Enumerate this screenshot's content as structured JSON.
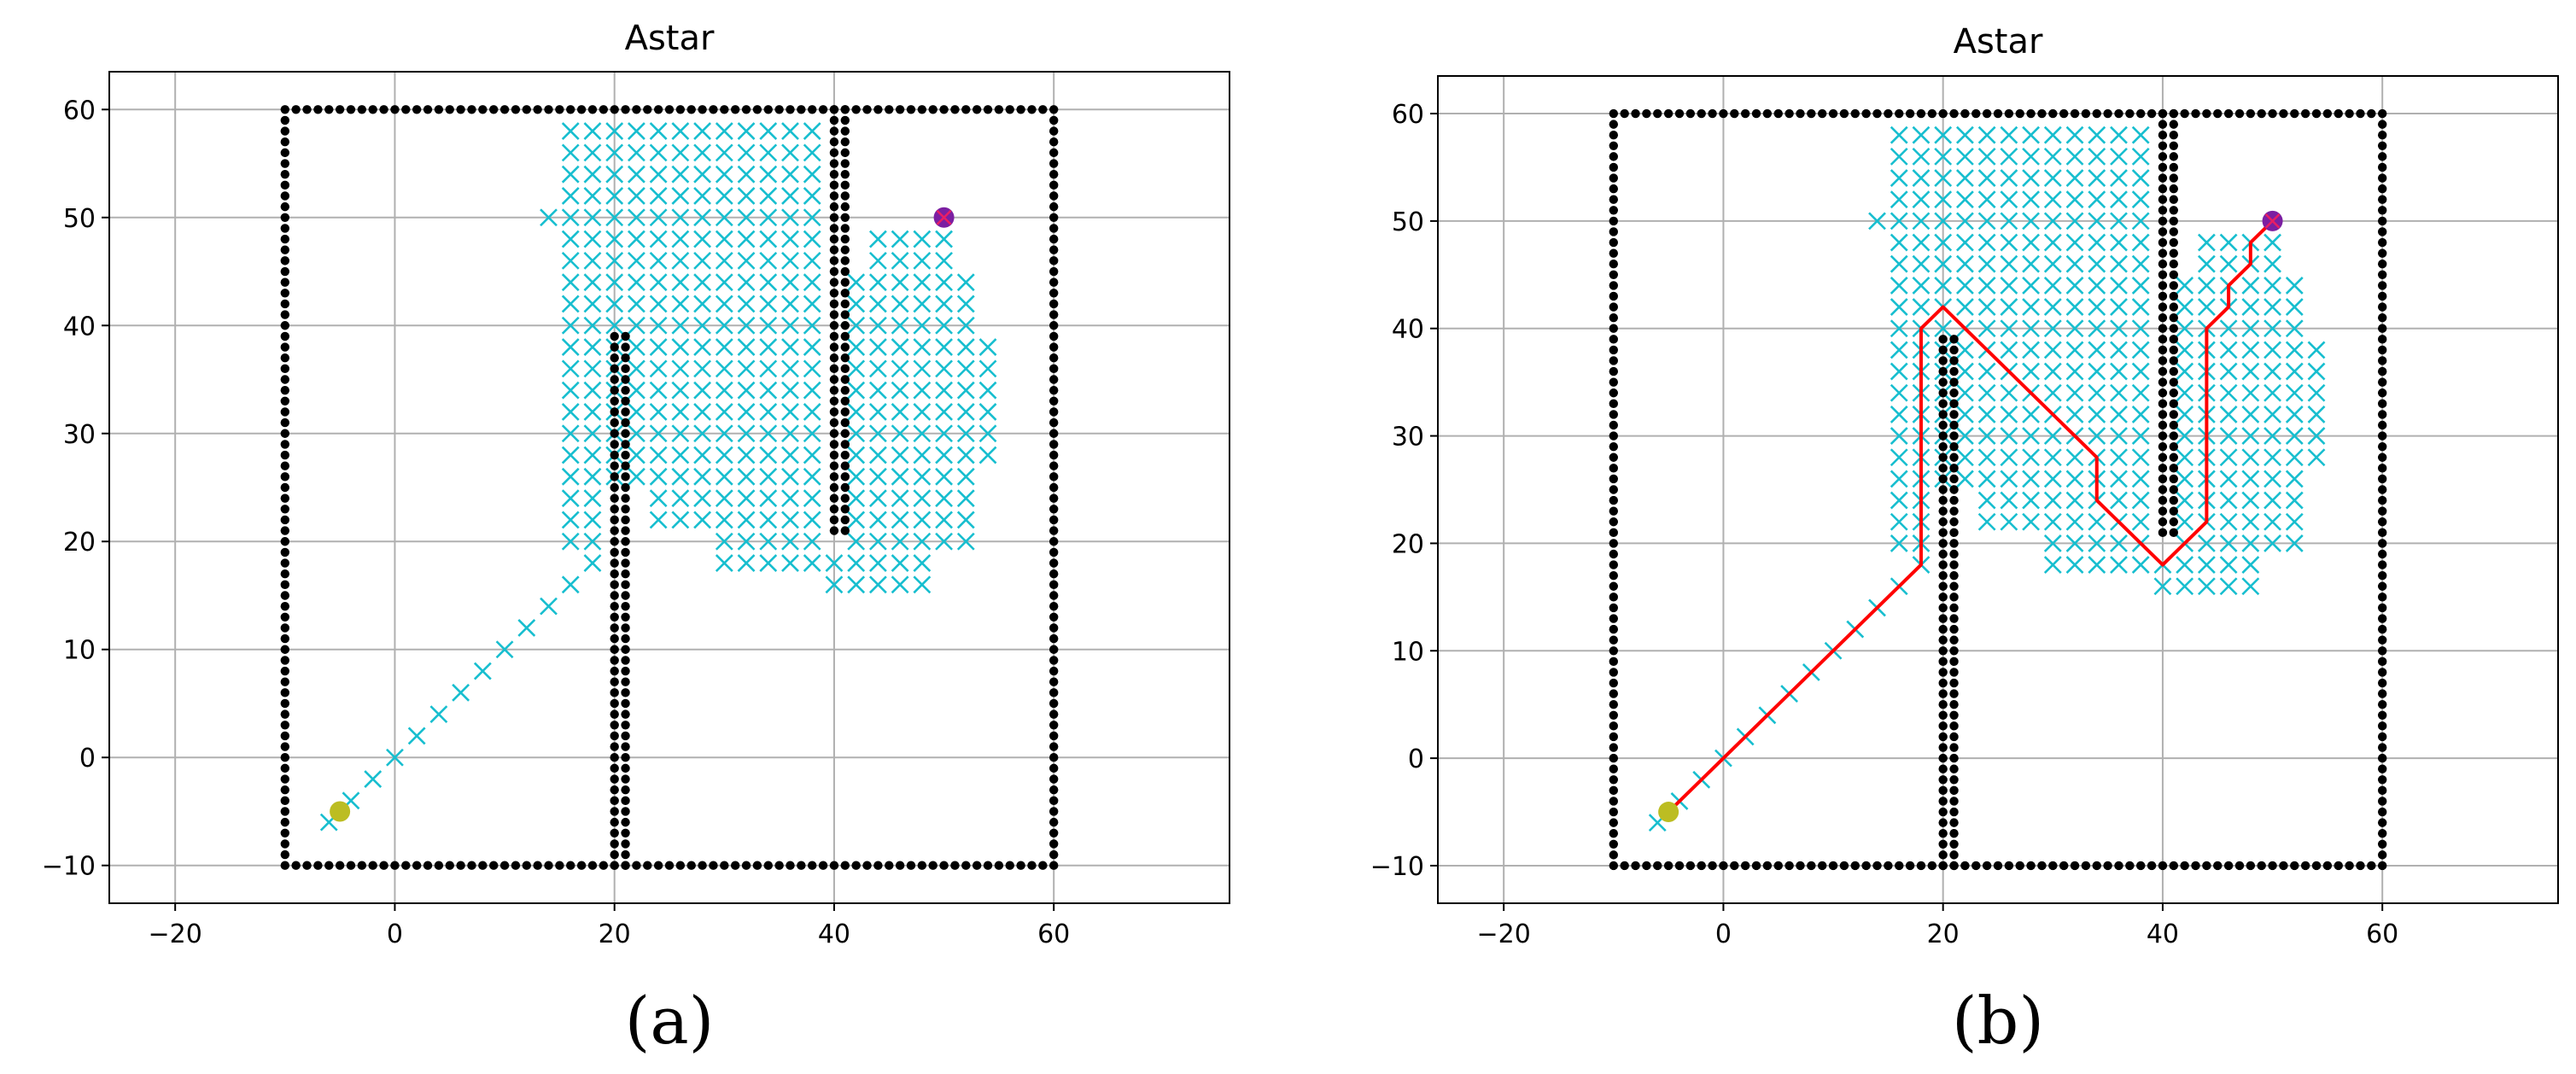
{
  "chart_data": [
    {
      "type": "scatter",
      "panel_label": "(a)",
      "title": "Astar",
      "xlabel": "",
      "ylabel": "",
      "xlim": [
        -26,
        76
      ],
      "ylim": [
        -13.5,
        63.5
      ],
      "xticks": [
        -20,
        0,
        20,
        40,
        60
      ],
      "yticks": [
        -10,
        0,
        10,
        20,
        30,
        40,
        50,
        60
      ],
      "grid": true,
      "legend": "none",
      "start": [
        -5,
        -5
      ],
      "goal": [
        50,
        50
      ],
      "obstacles": {
        "boundary": {
          "xmin": -10,
          "xmax": 60,
          "ymin": -10,
          "ymax": 60
        },
        "walls": [
          {
            "x": [
              20,
              21
            ],
            "y": [
              -10,
              39
            ]
          },
          {
            "x": [
              40,
              41
            ],
            "y": [
              21,
              60
            ]
          }
        ]
      },
      "explored_diagonal": [
        [
          -6,
          -6
        ],
        [
          -4,
          -4
        ],
        [
          -2,
          -2
        ],
        [
          0,
          0
        ],
        [
          2,
          2
        ],
        [
          4,
          4
        ],
        [
          6,
          6
        ],
        [
          8,
          8
        ],
        [
          10,
          10
        ],
        [
          12,
          12
        ],
        [
          14,
          14
        ],
        [
          16,
          16
        ],
        [
          18,
          18
        ]
      ],
      "explored_regions": [
        {
          "x": [
            16,
            38
          ],
          "y": [
            40,
            58
          ]
        },
        {
          "x": [
            18,
            38
          ],
          "y": [
            26,
            38
          ]
        },
        {
          "x": [
            16,
            18
          ],
          "y": [
            20,
            38
          ]
        },
        {
          "x": [
            24,
            38
          ],
          "y": [
            22,
            24
          ]
        },
        {
          "x": [
            30,
            38
          ],
          "y": [
            18,
            20
          ]
        },
        {
          "x": [
            42,
            52
          ],
          "y": [
            20,
            44
          ]
        },
        {
          "x": [
            52,
            54
          ],
          "y": [
            28,
            38
          ]
        },
        {
          "x": [
            44,
            50
          ],
          "y": [
            46,
            48
          ]
        },
        {
          "x": [
            40,
            48
          ],
          "y": [
            16,
            18
          ]
        }
      ],
      "path": null,
      "colors": {
        "obstacle": "#000000",
        "explored": "#17becf",
        "path": "#ff0000",
        "start": "#bcbd22",
        "goal": "#7b1fa2"
      }
    },
    {
      "type": "scatter",
      "panel_label": "(b)",
      "title": "Astar",
      "xlabel": "",
      "ylabel": "",
      "xlim": [
        -26,
        76
      ],
      "ylim": [
        -13.5,
        63.5
      ],
      "xticks": [
        -20,
        0,
        20,
        40,
        60
      ],
      "yticks": [
        -10,
        0,
        10,
        20,
        30,
        40,
        50,
        60
      ],
      "grid": true,
      "legend": "none",
      "start": [
        -5,
        -5
      ],
      "goal": [
        50,
        50
      ],
      "obstacles": {
        "boundary": {
          "xmin": -10,
          "xmax": 60,
          "ymin": -10,
          "ymax": 60
        },
        "walls": [
          {
            "x": [
              20,
              21
            ],
            "y": [
              -10,
              39
            ]
          },
          {
            "x": [
              40,
              41
            ],
            "y": [
              21,
              60
            ]
          }
        ]
      },
      "explored_diagonal": [
        [
          -6,
          -6
        ],
        [
          -4,
          -4
        ],
        [
          -2,
          -2
        ],
        [
          0,
          0
        ],
        [
          2,
          2
        ],
        [
          4,
          4
        ],
        [
          6,
          6
        ],
        [
          8,
          8
        ],
        [
          10,
          10
        ],
        [
          12,
          12
        ],
        [
          14,
          14
        ],
        [
          16,
          16
        ],
        [
          18,
          18
        ]
      ],
      "explored_regions": [
        {
          "x": [
            16,
            38
          ],
          "y": [
            40,
            58
          ]
        },
        {
          "x": [
            18,
            38
          ],
          "y": [
            26,
            38
          ]
        },
        {
          "x": [
            16,
            18
          ],
          "y": [
            20,
            38
          ]
        },
        {
          "x": [
            24,
            38
          ],
          "y": [
            22,
            24
          ]
        },
        {
          "x": [
            30,
            38
          ],
          "y": [
            18,
            20
          ]
        },
        {
          "x": [
            42,
            52
          ],
          "y": [
            20,
            44
          ]
        },
        {
          "x": [
            52,
            54
          ],
          "y": [
            28,
            38
          ]
        },
        {
          "x": [
            44,
            50
          ],
          "y": [
            46,
            48
          ]
        },
        {
          "x": [
            40,
            48
          ],
          "y": [
            16,
            18
          ]
        }
      ],
      "path": [
        [
          -5,
          -5
        ],
        [
          18,
          18
        ],
        [
          18,
          40
        ],
        [
          20,
          42
        ],
        [
          34,
          28
        ],
        [
          34,
          24
        ],
        [
          40,
          18
        ],
        [
          44,
          22
        ],
        [
          44,
          40
        ],
        [
          46,
          42
        ],
        [
          46,
          44
        ],
        [
          48,
          46
        ],
        [
          48,
          48
        ],
        [
          50,
          50
        ]
      ],
      "colors": {
        "obstacle": "#000000",
        "explored": "#17becf",
        "path": "#ff0000",
        "start": "#bcbd22",
        "goal": "#7b1fa2"
      }
    }
  ]
}
